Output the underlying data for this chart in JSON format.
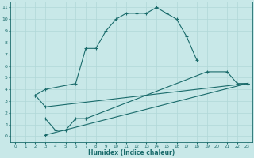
{
  "bg_color": "#c8e8e8",
  "line_color": "#1a6b6b",
  "grid_color": "#b0d8d8",
  "xlabel": "Humidex (Indice chaleur)",
  "xlim": [
    -0.5,
    23.5
  ],
  "ylim": [
    -0.5,
    11.5
  ],
  "xticks": [
    0,
    1,
    2,
    3,
    4,
    5,
    6,
    7,
    8,
    9,
    10,
    11,
    12,
    13,
    14,
    15,
    16,
    17,
    18,
    19,
    20,
    21,
    22,
    23
  ],
  "yticks": [
    0,
    1,
    2,
    3,
    4,
    5,
    6,
    7,
    8,
    9,
    10,
    11
  ],
  "curve1_x": [
    2,
    3,
    6,
    7,
    8,
    9,
    10,
    11,
    12,
    13,
    14,
    15,
    16,
    17,
    18
  ],
  "curve1_y": [
    3.5,
    4.0,
    4.5,
    7.5,
    7.5,
    9.0,
    10.0,
    10.5,
    10.5,
    10.5,
    11.0,
    10.5,
    10.0,
    8.5,
    6.5
  ],
  "curve2_x": [
    3,
    4,
    5,
    6,
    7,
    19,
    21,
    22,
    23
  ],
  "curve2_y": [
    1.5,
    0.5,
    0.5,
    1.5,
    1.5,
    5.5,
    5.5,
    4.5,
    4.5
  ],
  "curve3_x": [
    3,
    23
  ],
  "curve3_y": [
    0.1,
    4.5
  ],
  "curve4_x": [
    2,
    3,
    23
  ],
  "curve4_y": [
    3.5,
    2.5,
    4.5
  ],
  "figsize": [
    3.2,
    2.0
  ],
  "dpi": 100
}
